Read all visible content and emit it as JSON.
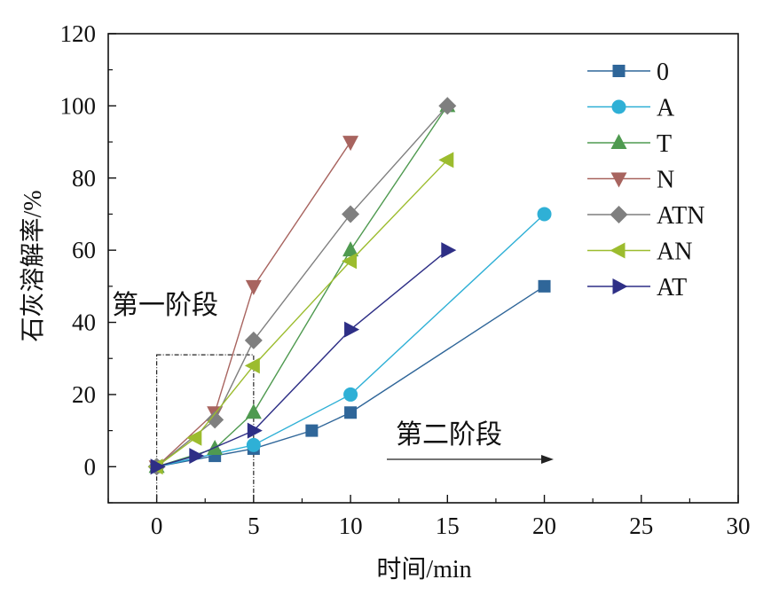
{
  "chart_data": {
    "type": "line",
    "title": "",
    "xlabel": "时间/min",
    "ylabel": "石灰溶解率/%",
    "xlim": [
      -2.5,
      30
    ],
    "ylim": [
      -10,
      120
    ],
    "xticks": [
      0,
      5,
      10,
      15,
      20,
      25,
      30
    ],
    "yticks": [
      0,
      20,
      40,
      60,
      80,
      100,
      120
    ],
    "grid": false,
    "legend_position": "top-right",
    "annotations": {
      "stage1": "第一阶段",
      "stage2": "第二阶段"
    },
    "series": [
      {
        "name": "0",
        "marker": "square",
        "color": "#2f6699",
        "x": [
          0,
          3,
          5,
          8,
          10,
          20
        ],
        "y": [
          0,
          3,
          5,
          10,
          15,
          50
        ]
      },
      {
        "name": "A",
        "marker": "circle",
        "color": "#2fb0d6",
        "x": [
          0,
          5,
          10,
          20
        ],
        "y": [
          0,
          6,
          20,
          70
        ]
      },
      {
        "name": "T",
        "marker": "triangle-up",
        "color": "#4f9a50",
        "x": [
          0,
          3,
          5,
          10,
          15
        ],
        "y": [
          0,
          5,
          15,
          60,
          100
        ]
      },
      {
        "name": "N",
        "marker": "triangle-down",
        "color": "#a8645f",
        "x": [
          0,
          3,
          5,
          10
        ],
        "y": [
          0,
          15,
          50,
          90
        ]
      },
      {
        "name": "ATN",
        "marker": "diamond",
        "color": "#7f7f7f",
        "x": [
          0,
          3,
          5,
          10,
          15
        ],
        "y": [
          0,
          13,
          35,
          70,
          100
        ]
      },
      {
        "name": "AN",
        "marker": "triangle-left",
        "color": "#9cbc2e",
        "x": [
          0,
          2,
          5,
          10,
          15
        ],
        "y": [
          0,
          8,
          28,
          57,
          85
        ]
      },
      {
        "name": "AT",
        "marker": "triangle-right",
        "color": "#2e2f86",
        "x": [
          0,
          2,
          5,
          10,
          15
        ],
        "y": [
          0,
          3,
          10,
          38,
          60
        ]
      }
    ]
  }
}
